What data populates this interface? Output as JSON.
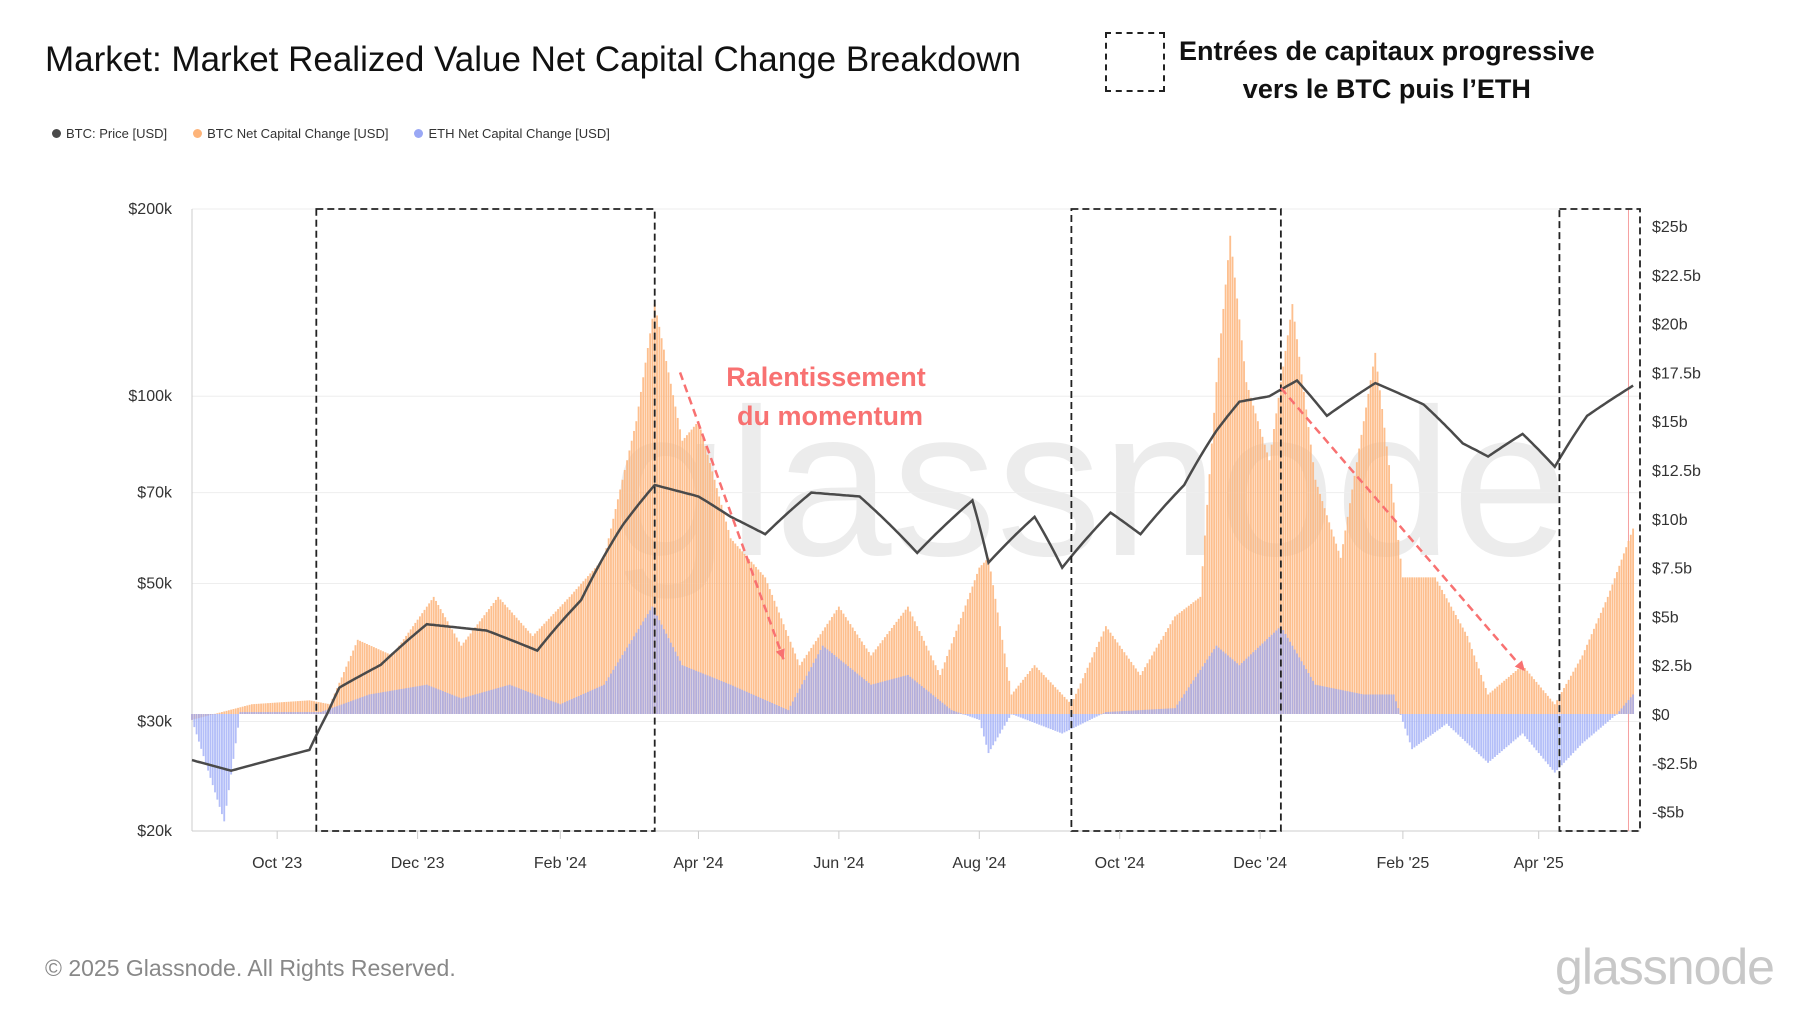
{
  "title": "Market: Market Realized Value Net Capital Change Breakdown",
  "callout": {
    "line1": "Entrées de capitaux progressive",
    "line2": "vers le BTC puis l’ETH"
  },
  "annotation": {
    "line1": "Ralentissement",
    "line2": "du momentum",
    "color": "#f87171"
  },
  "watermark": "glassnode",
  "footer": "© 2025 Glassnode. All Rights Reserved.",
  "logo": "glassnode",
  "chart_data": {
    "type": "bar+line",
    "legend": "top-left",
    "grid": true,
    "x_range": [
      "2023-08-25",
      "2025-05-15"
    ],
    "x_ticks": [
      {
        "date": "2023-10-01",
        "label": "Oct '23"
      },
      {
        "date": "2023-12-01",
        "label": "Dec '23"
      },
      {
        "date": "2024-02-01",
        "label": "Feb '24"
      },
      {
        "date": "2024-04-01",
        "label": "Apr '24"
      },
      {
        "date": "2024-06-01",
        "label": "Jun '24"
      },
      {
        "date": "2024-08-01",
        "label": "Aug '24"
      },
      {
        "date": "2024-10-01",
        "label": "Oct '24"
      },
      {
        "date": "2024-12-01",
        "label": "Dec '24"
      },
      {
        "date": "2025-02-01",
        "label": "Feb '25"
      },
      {
        "date": "2025-04-01",
        "label": "Apr '25"
      }
    ],
    "y_left": {
      "scale": "log",
      "range": [
        20000,
        200000
      ],
      "ticks": [
        {
          "v": 20000,
          "label": "$20k"
        },
        {
          "v": 30000,
          "label": "$30k"
        },
        {
          "v": 50000,
          "label": "$50k"
        },
        {
          "v": 70000,
          "label": "$70k"
        },
        {
          "v": 100000,
          "label": "$100k"
        },
        {
          "v": 200000,
          "label": "$200k"
        }
      ]
    },
    "y_right": {
      "scale": "linear",
      "unit": "billion USD",
      "range": [
        -5,
        25
      ],
      "ticks": [
        {
          "v": 25,
          "label": "$25b"
        },
        {
          "v": 22.5,
          "label": "$22.5b"
        },
        {
          "v": 20,
          "label": "$20b"
        },
        {
          "v": 17.5,
          "label": "$17.5b"
        },
        {
          "v": 15,
          "label": "$15b"
        },
        {
          "v": 12.5,
          "label": "$12.5b"
        },
        {
          "v": 10,
          "label": "$10b"
        },
        {
          "v": 7.5,
          "label": "$7.5b"
        },
        {
          "v": 5,
          "label": "$5b"
        },
        {
          "v": 2.5,
          "label": "$2.5b"
        },
        {
          "v": 0,
          "label": "$0"
        },
        {
          "v": -2.5,
          "label": "-$2.5b"
        },
        {
          "v": -5,
          "label": "-$5b"
        }
      ]
    },
    "series": [
      {
        "name": "BTC: Price [USD]",
        "type": "line",
        "axis": "left",
        "color": "#4a4a4a",
        "points": [
          [
            "2023-08-25",
            26000
          ],
          [
            "2023-09-11",
            25000
          ],
          [
            "2023-10-15",
            27000
          ],
          [
            "2023-10-23",
            31000
          ],
          [
            "2023-10-28",
            34000
          ],
          [
            "2023-11-15",
            37000
          ],
          [
            "2023-12-05",
            43000
          ],
          [
            "2023-12-31",
            42000
          ],
          [
            "2024-01-22",
            39000
          ],
          [
            "2024-02-10",
            47000
          ],
          [
            "2024-02-28",
            62000
          ],
          [
            "2024-03-13",
            72000
          ],
          [
            "2024-04-01",
            69000
          ],
          [
            "2024-04-15",
            64000
          ],
          [
            "2024-04-30",
            60000
          ],
          [
            "2024-05-20",
            70000
          ],
          [
            "2024-06-10",
            69000
          ],
          [
            "2024-07-05",
            56000
          ],
          [
            "2024-07-29",
            68000
          ],
          [
            "2024-08-05",
            54000
          ],
          [
            "2024-08-25",
            64000
          ],
          [
            "2024-09-06",
            53000
          ],
          [
            "2024-09-27",
            65000
          ],
          [
            "2024-10-10",
            60000
          ],
          [
            "2024-10-29",
            72000
          ],
          [
            "2024-11-12",
            88000
          ],
          [
            "2024-11-22",
            98000
          ],
          [
            "2024-12-05",
            100000
          ],
          [
            "2024-12-17",
            106000
          ],
          [
            "2024-12-30",
            93000
          ],
          [
            "2025-01-20",
            105000
          ],
          [
            "2025-02-10",
            97000
          ],
          [
            "2025-02-27",
            84000
          ],
          [
            "2025-03-10",
            80000
          ],
          [
            "2025-03-25",
            87000
          ],
          [
            "2025-04-08",
            77000
          ],
          [
            "2025-04-22",
            93000
          ],
          [
            "2025-05-12",
            104000
          ]
        ]
      },
      {
        "name": "BTC Net Capital Change [USD]",
        "type": "bar",
        "axis": "right",
        "color": "#fdb47a",
        "points": [
          [
            "2023-08-25",
            -0.3
          ],
          [
            "2023-09-20",
            0.5
          ],
          [
            "2023-10-15",
            0.7
          ],
          [
            "2023-10-24",
            0.5
          ],
          [
            "2023-11-05",
            3.8
          ],
          [
            "2023-11-20",
            3
          ],
          [
            "2023-12-08",
            6
          ],
          [
            "2023-12-20",
            3.5
          ],
          [
            "2024-01-05",
            6
          ],
          [
            "2024-01-20",
            4
          ],
          [
            "2024-02-05",
            6
          ],
          [
            "2024-02-20",
            8
          ],
          [
            "2024-03-05",
            15
          ],
          [
            "2024-03-13",
            21
          ],
          [
            "2024-03-25",
            14
          ],
          [
            "2024-04-01",
            15
          ],
          [
            "2024-04-15",
            9
          ],
          [
            "2024-04-30",
            7
          ],
          [
            "2024-05-15",
            2.5
          ],
          [
            "2024-06-01",
            5.5
          ],
          [
            "2024-06-15",
            3
          ],
          [
            "2024-07-01",
            5.5
          ],
          [
            "2024-07-15",
            2
          ],
          [
            "2024-08-01",
            7.5
          ],
          [
            "2024-08-05",
            8
          ],
          [
            "2024-08-15",
            1
          ],
          [
            "2024-08-25",
            2.5
          ],
          [
            "2024-09-10",
            0.5
          ],
          [
            "2024-09-25",
            4.5
          ],
          [
            "2024-10-10",
            2
          ],
          [
            "2024-10-25",
            5
          ],
          [
            "2024-11-05",
            6
          ],
          [
            "2024-11-12",
            17
          ],
          [
            "2024-11-18",
            24.5
          ],
          [
            "2024-11-25",
            17
          ],
          [
            "2024-12-05",
            13
          ],
          [
            "2024-12-15",
            21
          ],
          [
            "2024-12-25",
            12
          ],
          [
            "2025-01-05",
            8
          ],
          [
            "2025-01-20",
            18.5
          ],
          [
            "2025-02-01",
            7
          ],
          [
            "2025-02-15",
            7
          ],
          [
            "2025-03-01",
            4
          ],
          [
            "2025-03-10",
            1
          ],
          [
            "2025-03-25",
            2.5
          ],
          [
            "2025-04-08",
            0.5
          ],
          [
            "2025-04-20",
            3
          ],
          [
            "2025-05-01",
            6
          ],
          [
            "2025-05-12",
            9.5
          ]
        ]
      },
      {
        "name": "ETH Net Capital Change [USD]",
        "type": "bar",
        "axis": "right",
        "color": "#9aa8f5",
        "points": [
          [
            "2023-08-25",
            -0.3
          ],
          [
            "2023-09-08",
            -5.5
          ],
          [
            "2023-09-15",
            0.1
          ],
          [
            "2023-10-20",
            0.1
          ],
          [
            "2023-11-10",
            1
          ],
          [
            "2023-12-05",
            1.5
          ],
          [
            "2023-12-20",
            0.8
          ],
          [
            "2024-01-10",
            1.5
          ],
          [
            "2024-02-01",
            0.5
          ],
          [
            "2024-02-20",
            1.5
          ],
          [
            "2024-03-12",
            5.5
          ],
          [
            "2024-03-25",
            2.5
          ],
          [
            "2024-04-15",
            1.5
          ],
          [
            "2024-05-10",
            0.2
          ],
          [
            "2024-05-25",
            3.5
          ],
          [
            "2024-06-15",
            1.5
          ],
          [
            "2024-07-01",
            2
          ],
          [
            "2024-07-20",
            0.2
          ],
          [
            "2024-08-01",
            -0.3
          ],
          [
            "2024-08-05",
            -2
          ],
          [
            "2024-08-15",
            0
          ],
          [
            "2024-09-06",
            -1
          ],
          [
            "2024-09-25",
            0.1
          ],
          [
            "2024-10-25",
            0.3
          ],
          [
            "2024-11-12",
            3.5
          ],
          [
            "2024-11-22",
            2.5
          ],
          [
            "2024-12-10",
            4.5
          ],
          [
            "2024-12-25",
            1.5
          ],
          [
            "2025-01-15",
            1
          ],
          [
            "2025-01-28",
            1
          ],
          [
            "2025-02-05",
            -1.8
          ],
          [
            "2025-02-20",
            -0.5
          ],
          [
            "2025-03-10",
            -2.5
          ],
          [
            "2025-03-25",
            -1
          ],
          [
            "2025-04-08",
            -3
          ],
          [
            "2025-04-20",
            -1.5
          ],
          [
            "2025-05-05",
            0
          ],
          [
            "2025-05-12",
            1
          ]
        ]
      }
    ],
    "highlight_ranges": [
      [
        "2023-10-18",
        "2024-03-13"
      ],
      [
        "2024-09-10",
        "2024-12-10"
      ],
      [
        "2025-04-10",
        "2025-05-15"
      ]
    ],
    "trend_arrows": [
      [
        [
          "2024-03-24",
          17.5
        ],
        [
          "2024-05-08",
          2.8
        ]
      ],
      [
        [
          "2024-12-10",
          16.7
        ],
        [
          "2025-03-26",
          2.2
        ]
      ]
    ]
  }
}
